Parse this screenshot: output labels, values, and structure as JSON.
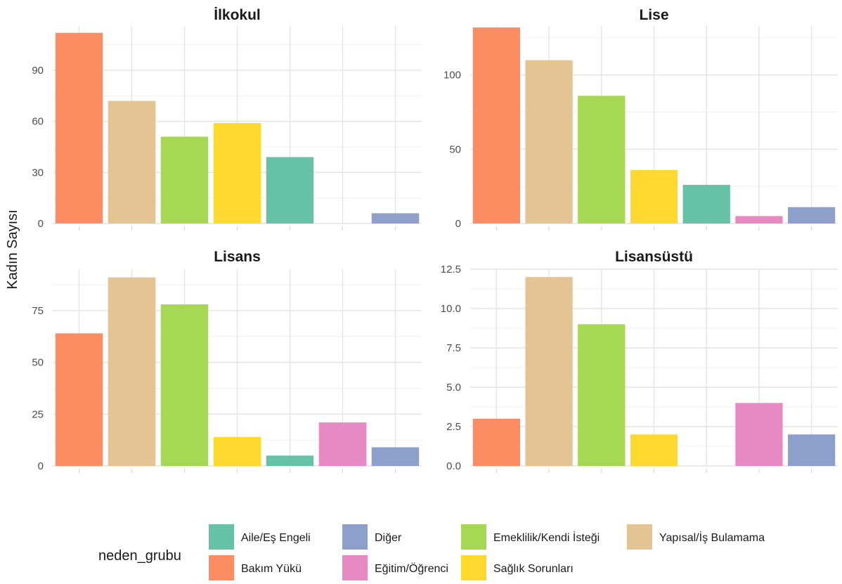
{
  "chart_data": {
    "type": "bar",
    "ylabel": "Kadın Sayısı",
    "legend": {
      "title": "neden_grubu",
      "position": "bottom",
      "entries": [
        {
          "key": "Aile/Eş Engeli",
          "color": "#66c2a5"
        },
        {
          "key": "Diğer",
          "color": "#8da0cb"
        },
        {
          "key": "Emeklilik/Kendi İsteği",
          "color": "#a6d854"
        },
        {
          "key": "Yapısal/İş Bulamama",
          "color": "#e5c494"
        },
        {
          "key": "Bakım Yükü",
          "color": "#fc8d62"
        },
        {
          "key": "Eğitim/Öğrenci",
          "color": "#e78ac3"
        },
        {
          "key": "Sağlık Sorunları",
          "color": "#ffd92f"
        }
      ]
    },
    "categories": [
      "Bakım Yükü",
      "Yapısal/İş Bulamama",
      "Emeklilik/Kendi İsteği",
      "Sağlık Sorunları",
      "Aile/Eş Engeli",
      "Eğitim/Öğrenci",
      "Diğer"
    ],
    "grid": true,
    "panels": [
      {
        "title": "İlkokul",
        "ylim": [
          0,
          116
        ],
        "yticks": [
          0,
          30,
          60,
          90
        ],
        "ytick_labels": [
          "0",
          "30",
          "60",
          "90"
        ],
        "values": [
          112,
          72,
          51,
          59,
          39,
          0,
          6
        ]
      },
      {
        "title": "Lise",
        "ylim": [
          0,
          133
        ],
        "yticks": [
          0,
          50,
          100
        ],
        "ytick_labels": [
          "0",
          "50",
          "100"
        ],
        "values": [
          132,
          110,
          86,
          36,
          26,
          5,
          11
        ]
      },
      {
        "title": "Lisans",
        "ylim": [
          0,
          95
        ],
        "yticks": [
          0,
          25,
          50,
          75
        ],
        "ytick_labels": [
          "0",
          "25",
          "50",
          "75"
        ],
        "values": [
          64,
          91,
          78,
          14,
          5,
          21,
          9
        ]
      },
      {
        "title": "Lisansüstü",
        "ylim": [
          0,
          12.5
        ],
        "yticks": [
          0,
          2.5,
          5,
          7.5,
          10,
          12.5
        ],
        "ytick_labels": [
          "0.0",
          "2.5",
          "5.0",
          "7.5",
          "10.0",
          "12.5"
        ],
        "values": [
          3,
          12,
          9,
          2,
          0,
          4,
          2
        ]
      }
    ]
  }
}
